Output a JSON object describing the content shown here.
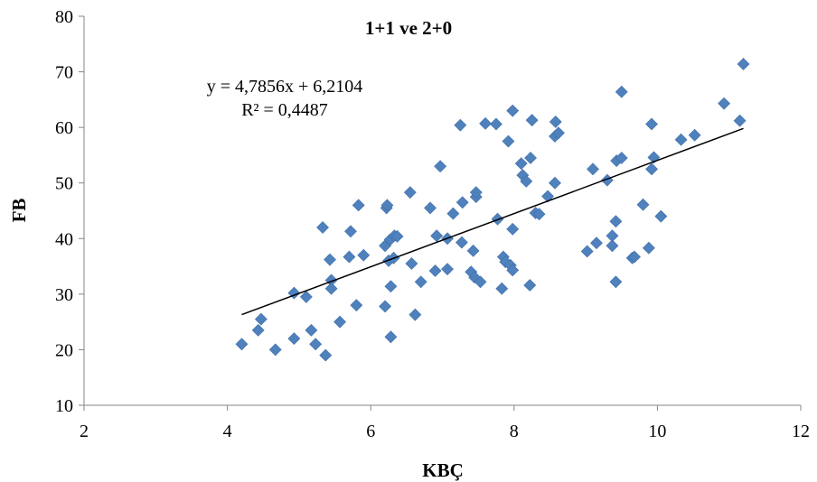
{
  "chart_data": {
    "type": "scatter",
    "title": "1+1 ve 2+0",
    "xlabel": "KBÇ",
    "ylabel": "FB",
    "xlim": [
      2,
      12
    ],
    "ylim": [
      10,
      80
    ],
    "xticks": [
      2,
      4,
      6,
      8,
      10,
      12
    ],
    "yticks": [
      10,
      20,
      30,
      40,
      50,
      60,
      70,
      80
    ],
    "grid": false,
    "legend": "none",
    "marker_color": "#4f81bd",
    "trendline": {
      "slope": 4.7856,
      "intercept": 6.2104,
      "x_range": [
        4.2,
        11.2
      ],
      "equation_label": "y = 4,7856x + 6,2104",
      "r2_label": "R² = 0,4487",
      "color": "#000000"
    },
    "series": [
      {
        "points": [
          [
            4.2,
            21
          ],
          [
            4.43,
            23.5
          ],
          [
            4.47,
            25.5
          ],
          [
            4.67,
            20
          ],
          [
            4.93,
            30.2
          ],
          [
            4.93,
            22
          ],
          [
            5.1,
            29.5
          ],
          [
            5.17,
            23.5
          ],
          [
            5.23,
            21
          ],
          [
            5.33,
            42
          ],
          [
            5.37,
            19
          ],
          [
            5.43,
            36.2
          ],
          [
            5.45,
            32.5
          ],
          [
            5.45,
            31
          ],
          [
            5.57,
            25
          ],
          [
            5.7,
            36.7
          ],
          [
            5.72,
            41.3
          ],
          [
            5.8,
            28
          ],
          [
            5.83,
            46
          ],
          [
            5.9,
            37
          ],
          [
            6.2,
            27.8
          ],
          [
            6.2,
            38.7
          ],
          [
            6.22,
            45.5
          ],
          [
            6.23,
            46
          ],
          [
            6.25,
            36
          ],
          [
            6.27,
            39.8
          ],
          [
            6.28,
            31.4
          ],
          [
            6.28,
            22.3
          ],
          [
            6.32,
            36.5
          ],
          [
            6.33,
            40.5
          ],
          [
            6.37,
            40.4
          ],
          [
            6.55,
            48.3
          ],
          [
            6.57,
            35.5
          ],
          [
            6.62,
            26.3
          ],
          [
            6.7,
            32.2
          ],
          [
            6.83,
            45.5
          ],
          [
            6.9,
            34.2
          ],
          [
            6.92,
            40.5
          ],
          [
            6.97,
            53
          ],
          [
            7.07,
            34.5
          ],
          [
            7.07,
            40
          ],
          [
            7.15,
            44.5
          ],
          [
            7.25,
            60.4
          ],
          [
            7.27,
            39.3
          ],
          [
            7.28,
            46.5
          ],
          [
            7.4,
            34
          ],
          [
            7.43,
            37.8
          ],
          [
            7.45,
            33
          ],
          [
            7.47,
            47.5
          ],
          [
            7.47,
            48.3
          ],
          [
            7.53,
            32.2
          ],
          [
            7.6,
            60.7
          ],
          [
            7.75,
            60.6
          ],
          [
            7.77,
            43.5
          ],
          [
            7.83,
            31
          ],
          [
            7.85,
            36.7
          ],
          [
            7.88,
            35.8
          ],
          [
            7.92,
            57.5
          ],
          [
            7.95,
            35.2
          ],
          [
            7.98,
            63
          ],
          [
            7.98,
            34.3
          ],
          [
            7.98,
            41.7
          ],
          [
            8.1,
            53.5
          ],
          [
            8.12,
            51.4
          ],
          [
            8.17,
            50.3
          ],
          [
            8.22,
            31.6
          ],
          [
            8.23,
            54.5
          ],
          [
            8.25,
            61.3
          ],
          [
            8.3,
            44.6
          ],
          [
            8.35,
            44.4
          ],
          [
            8.47,
            47.6
          ],
          [
            8.57,
            50
          ],
          [
            8.57,
            58.4
          ],
          [
            8.58,
            61
          ],
          [
            8.62,
            59
          ],
          [
            9.02,
            37.7
          ],
          [
            9.1,
            52.5
          ],
          [
            9.15,
            39.2
          ],
          [
            9.3,
            50.5
          ],
          [
            9.37,
            38.7
          ],
          [
            9.37,
            40.5
          ],
          [
            9.42,
            32.2
          ],
          [
            9.42,
            43.1
          ],
          [
            9.43,
            54
          ],
          [
            9.5,
            54.5
          ],
          [
            9.5,
            66.4
          ],
          [
            9.65,
            36.5
          ],
          [
            9.68,
            36.7
          ],
          [
            9.8,
            46.1
          ],
          [
            9.88,
            38.3
          ],
          [
            9.92,
            60.6
          ],
          [
            9.92,
            52.5
          ],
          [
            9.95,
            54.6
          ],
          [
            10.05,
            44
          ],
          [
            10.33,
            57.8
          ],
          [
            10.52,
            58.6
          ],
          [
            10.93,
            64.3
          ],
          [
            11.15,
            61.2
          ],
          [
            11.2,
            71.4
          ]
        ]
      }
    ]
  }
}
